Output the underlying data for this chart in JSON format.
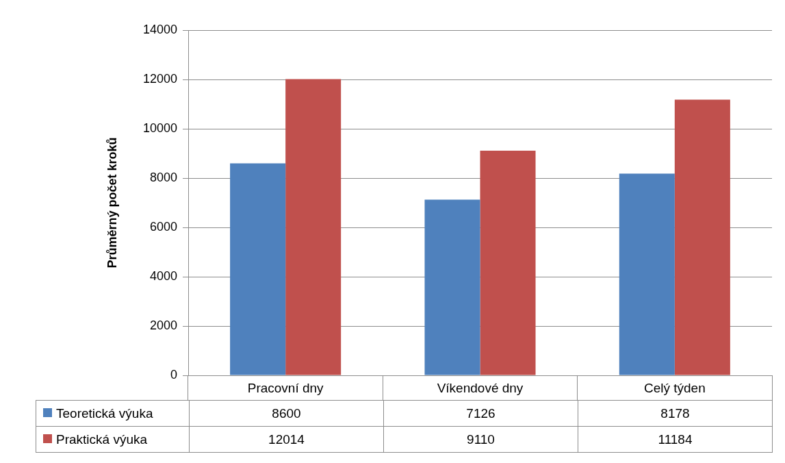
{
  "chart_data": {
    "type": "bar",
    "ylabel": "Průměrný počet kroků",
    "categories": [
      "Pracovní dny",
      "Víkendové dny",
      "Celý týden"
    ],
    "series": [
      {
        "name": "Teoretická výuka",
        "color": "#4f81bd",
        "values": [
          8600,
          7126,
          8178
        ]
      },
      {
        "name": "Praktická výuka",
        "color": "#c0504d",
        "values": [
          12014,
          9110,
          11184
        ]
      }
    ],
    "ylim": [
      0,
      14000
    ],
    "yticks": [
      0,
      2000,
      4000,
      6000,
      8000,
      10000,
      12000,
      14000
    ],
    "grid": "y",
    "legend": "bottom",
    "data_labels": true
  }
}
